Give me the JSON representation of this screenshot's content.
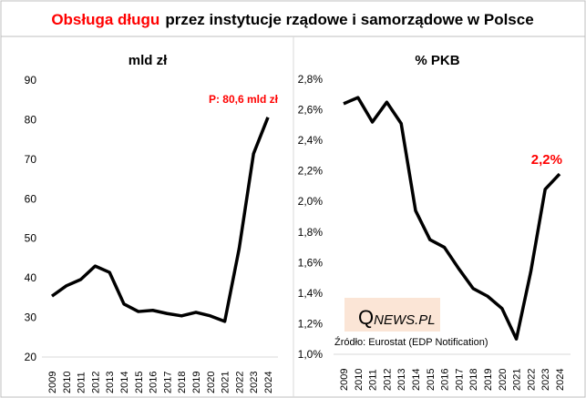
{
  "title": {
    "red": "Obsługa długu",
    "black": "przez instytucje  rządowe  i samorządowe  w Polsce"
  },
  "source": "Źródło: Eurostat (EDP Notification)",
  "logo": {
    "q": "Q",
    "rest": "NEWS.PL"
  },
  "colors": {
    "accent": "#ff0000",
    "line": "#000000",
    "logo_bg": "#fbe5d6"
  },
  "chart_data": [
    {
      "type": "line",
      "title": "mld zł",
      "categories": [
        "2009",
        "2010",
        "2011",
        "2012",
        "2013",
        "2014",
        "2015",
        "2016",
        "2017",
        "2018",
        "2019",
        "2020",
        "2021",
        "2022",
        "2023",
        "2024"
      ],
      "values": [
        35.4,
        38,
        39.6,
        43,
        41.4,
        33.4,
        31.5,
        31.8,
        31,
        30.4,
        31.3,
        30.4,
        29,
        47.4,
        71.4,
        80.6
      ],
      "ylim": [
        20,
        90
      ],
      "yticks": [
        "20",
        "30",
        "40",
        "50",
        "60",
        "70",
        "80",
        "90"
      ],
      "annotation": "P: 80,6  mld zł"
    },
    {
      "type": "line",
      "title": "% PKB",
      "categories": [
        "2009",
        "2010",
        "2011",
        "2012",
        "2013",
        "2014",
        "2015",
        "2016",
        "2017",
        "2018",
        "2019",
        "2020",
        "2021",
        "2022",
        "2023",
        "2024"
      ],
      "values": [
        2.64,
        2.68,
        2.52,
        2.65,
        2.51,
        1.94,
        1.75,
        1.7,
        1.56,
        1.43,
        1.38,
        1.3,
        1.1,
        1.54,
        2.08,
        2.18
      ],
      "ylim": [
        1.0,
        2.8
      ],
      "yticks": [
        "1,0%",
        "1,2%",
        "1,4%",
        "1,6%",
        "1,8%",
        "2,0%",
        "2,2%",
        "2,4%",
        "2,6%",
        "2,8%"
      ],
      "annotation": "2,2%"
    }
  ]
}
